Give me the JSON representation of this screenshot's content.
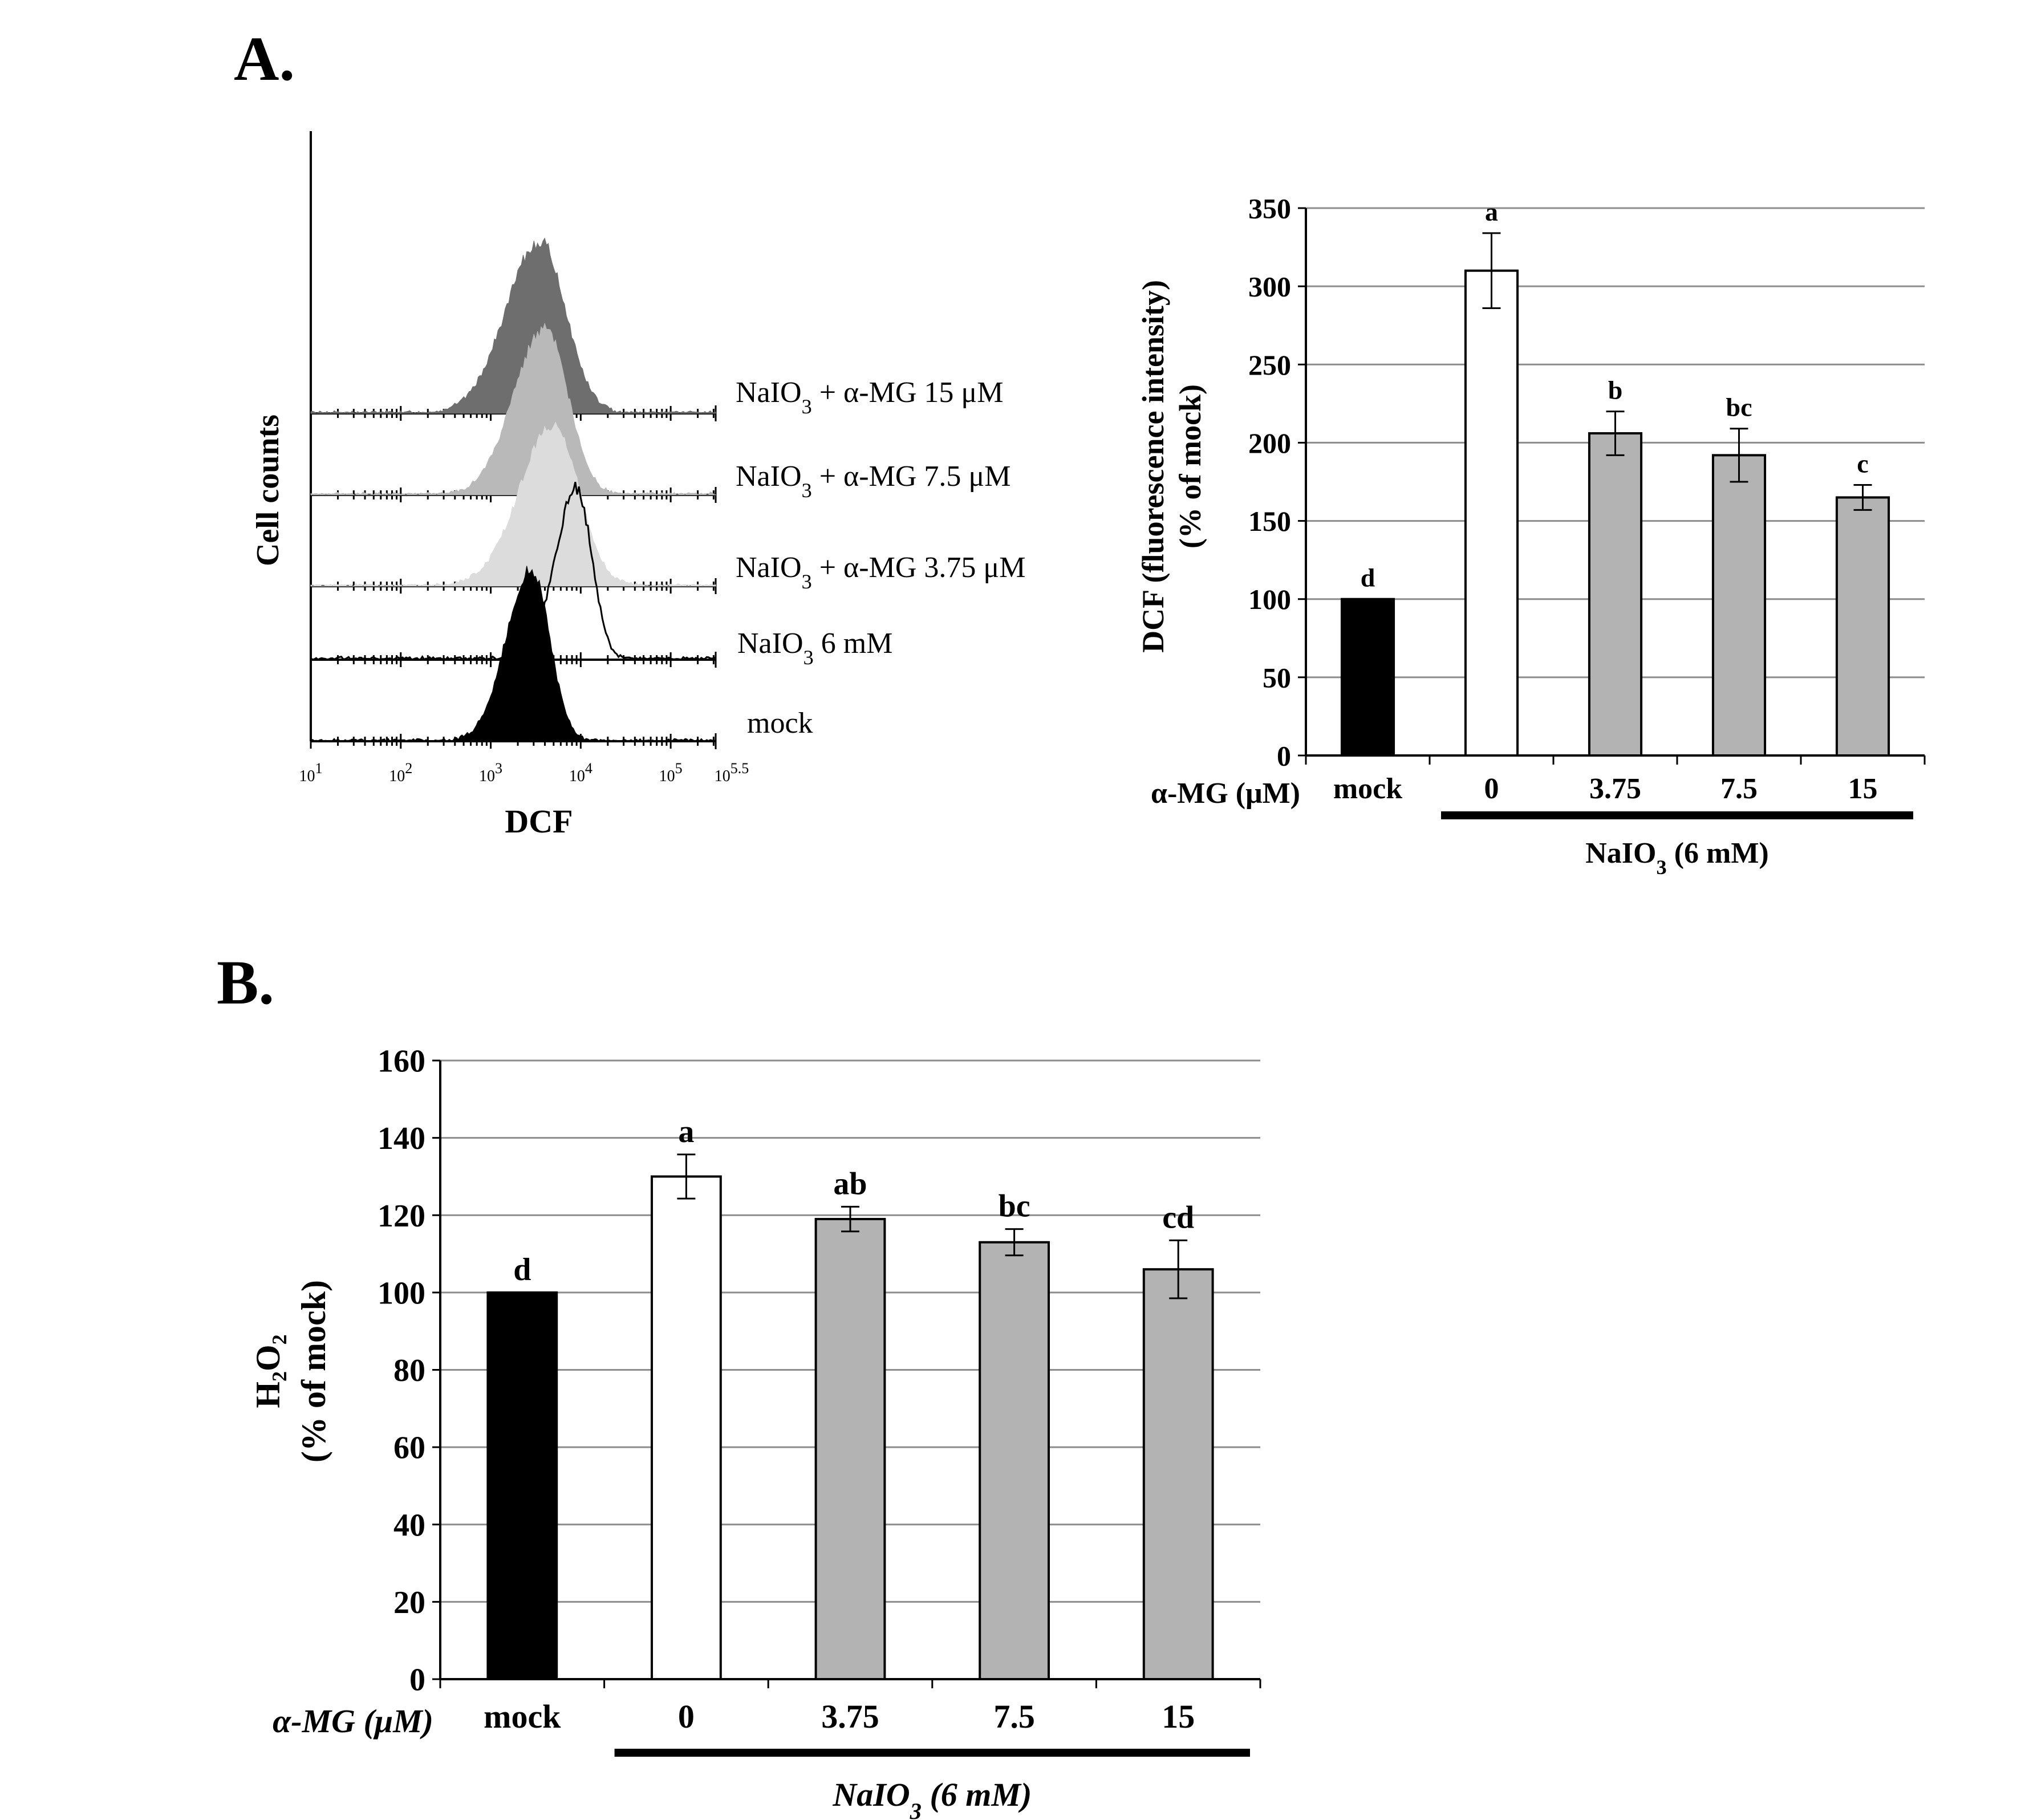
{
  "panels": {
    "a_label": "A.",
    "b_label": "B."
  },
  "histogram": {
    "ylabel": "Cell counts",
    "xlabel": "DCF",
    "log_ticks": [
      "10",
      "10",
      "10",
      "10",
      "10",
      "10"
    ],
    "log_tick_exponents": [
      "1",
      "2",
      "3",
      "4",
      "5",
      "5.5"
    ],
    "traces": [
      {
        "name": "NaIO3 + α-MG 15 μM",
        "base": "NaIO",
        "sub": "3",
        "rest": " + α-MG 15 μM",
        "fill": "#6e6e6e",
        "peak_log": 3.55
      },
      {
        "name": "NaIO3 + α-MG 7.5 μM",
        "base": "NaIO",
        "sub": "3",
        "rest": " + α-MG 7.5 μM",
        "fill": "#b9b9b9",
        "peak_log": 3.6
      },
      {
        "name": "NaIO3 + α-MG 3.75 μM",
        "base": "NaIO",
        "sub": "3",
        "rest": " + α-MG 3.75 μM",
        "fill": "#dcdcdc",
        "peak_log": 3.7
      },
      {
        "name": "NaIO3 6 mM",
        "base": "NaIO",
        "sub": "3",
        "rest": " 6 mM",
        "fill": "none",
        "peak_log": 3.95
      },
      {
        "name": "mock",
        "base": "mock",
        "sub": "",
        "rest": "",
        "fill": "#000000",
        "peak_log": 3.45
      }
    ]
  },
  "chart_data": [
    {
      "type": "bar",
      "panel": "A",
      "title": "",
      "ylabel_line1": "DCF (fluorescence intensity)",
      "ylabel_line2": "(% of mock)",
      "xlabel_prefix": "α-MG (μM)",
      "categories": [
        "mock",
        "0",
        "3.75",
        "7.5",
        "15"
      ],
      "values": [
        100,
        310,
        206,
        192,
        165
      ],
      "errors": [
        0,
        24,
        14,
        17,
        8
      ],
      "letters": [
        "d",
        "a",
        "b",
        "bc",
        "c"
      ],
      "colors": [
        "#000000",
        "#ffffff",
        "#b3b3b3",
        "#b3b3b3",
        "#b3b3b3"
      ],
      "ylim": [
        0,
        350
      ],
      "yticks": [
        0,
        50,
        100,
        150,
        200,
        250,
        300,
        350
      ],
      "grid": true,
      "group_label": "NaIO",
      "group_label_sub": "3",
      "group_label_rest": " (6 mM)"
    },
    {
      "type": "bar",
      "panel": "B",
      "title": "",
      "ylabel_line1": "H₂O₂",
      "ylabel_line2": "(% of mock)",
      "xlabel_prefix": "α-MG (μM)",
      "categories": [
        "mock",
        "0",
        "3.75",
        "7.5",
        "15"
      ],
      "values": [
        100,
        130,
        119,
        113,
        106
      ],
      "errors": [
        0,
        5.7,
        3.2,
        3.4,
        7.5
      ],
      "letters": [
        "d",
        "a",
        "ab",
        "bc",
        "cd"
      ],
      "colors": [
        "#000000",
        "#ffffff",
        "#b3b3b3",
        "#b3b3b3",
        "#b3b3b3"
      ],
      "ylim": [
        0,
        160
      ],
      "yticks": [
        0,
        20,
        40,
        60,
        80,
        100,
        120,
        140,
        160
      ],
      "grid": true,
      "group_label": "NaIO",
      "group_label_sub": "3",
      "group_label_rest": " (6 mM)"
    }
  ]
}
